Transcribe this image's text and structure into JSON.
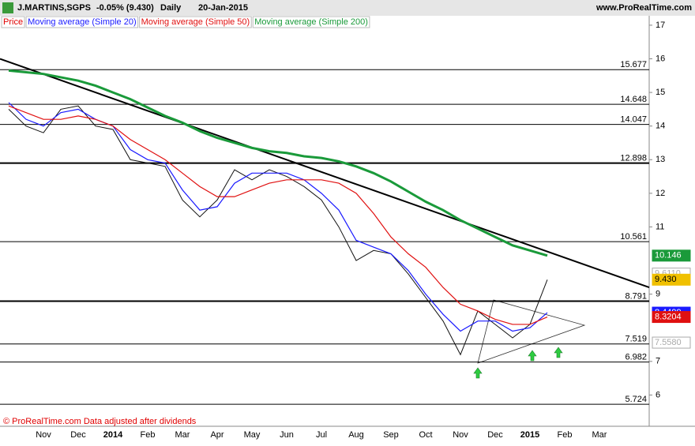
{
  "header": {
    "symbol": "J.MARTINS,SGPS",
    "change": "-0.05% (9.430)",
    "period": "Daily",
    "date": "20-Jan-2015",
    "site": "www.ProRealTime.com"
  },
  "footer": "© ProRealTime.com Data adjusted after dividends",
  "chart_data": {
    "type": "line",
    "categories": [
      null,
      null,
      "Nov",
      null,
      "Dec",
      null,
      "2014",
      null,
      "Feb",
      null,
      "Mar",
      null,
      "Apr",
      null,
      "May",
      null,
      "Jun",
      null,
      "Jul",
      null,
      "Aug",
      null,
      "Sep",
      null,
      "Oct",
      null,
      "Nov",
      null,
      "Dec",
      null,
      "2015",
      null,
      "Feb",
      null,
      "Mar"
    ],
    "series": [
      {
        "name": "Price",
        "color": "#111111",
        "legend_color": "#e00000",
        "values": [
          14.5,
          14.0,
          13.8,
          14.5,
          14.6,
          14.0,
          13.9,
          13.0,
          12.9,
          12.8,
          11.8,
          11.3,
          11.8,
          12.7,
          12.4,
          12.7,
          12.5,
          12.2,
          11.8,
          11.0,
          10.0,
          10.3,
          10.2,
          9.6,
          8.9,
          8.2,
          7.2,
          8.5,
          8.1,
          7.7,
          8.1,
          9.43,
          null,
          null,
          null
        ]
      },
      {
        "name": "Moving average (Simple 20)",
        "color": "#1a1aff",
        "values": [
          14.7,
          14.2,
          14.0,
          14.4,
          14.5,
          14.2,
          14.0,
          13.3,
          13.0,
          12.9,
          12.1,
          11.5,
          11.6,
          12.3,
          12.6,
          12.6,
          12.6,
          12.4,
          12.0,
          11.5,
          10.6,
          10.4,
          10.2,
          9.7,
          9.0,
          8.4,
          7.9,
          8.2,
          8.2,
          7.9,
          8.0,
          8.4499,
          null,
          null,
          null
        ]
      },
      {
        "name": "Moving average (Simple 50)",
        "color": "#e01010",
        "values": [
          14.6,
          14.4,
          14.2,
          14.2,
          14.3,
          14.2,
          14.0,
          13.6,
          13.3,
          13.0,
          12.6,
          12.2,
          11.9,
          11.9,
          12.1,
          12.3,
          12.4,
          12.4,
          12.4,
          12.3,
          12.0,
          11.4,
          10.7,
          10.2,
          9.8,
          9.2,
          8.7,
          8.5,
          8.25,
          8.1,
          8.1,
          8.3204,
          null,
          null,
          null
        ]
      },
      {
        "name": "Moving average (Simple 200)",
        "color": "#1a9a3a",
        "values": [
          15.65,
          15.6,
          15.55,
          15.45,
          15.35,
          15.2,
          15.0,
          14.8,
          14.55,
          14.3,
          14.1,
          13.85,
          13.65,
          13.5,
          13.35,
          13.25,
          13.2,
          13.1,
          13.05,
          12.95,
          12.8,
          12.6,
          12.35,
          12.05,
          11.75,
          11.5,
          11.2,
          10.95,
          10.7,
          10.45,
          10.3,
          10.146,
          null,
          null,
          null
        ]
      }
    ],
    "levels": [
      15.677,
      14.648,
      14.047,
      12.898,
      10.561,
      8.791,
      7.519,
      6.982,
      5.724
    ],
    "trendline": [
      16.0,
      9.2
    ],
    "price_tags": [
      {
        "value": 10.146,
        "color": "#1a9a3a"
      },
      {
        "value": {
          "value": 9.611,
          "label": "9.6110"
        },
        "color": "#aaaaaa"
      },
      {
        "value": {
          "value": 9.43,
          "label": "9.430"
        },
        "color": "#f0c000"
      },
      {
        "value": 8.4499,
        "color": "#1a1aff"
      },
      {
        "value": 8.3204,
        "color": "#e01010"
      },
      {
        "value": {
          "value": 7.558,
          "label": "7.5580"
        },
        "color": "#aaaaaa"
      }
    ],
    "ylim": [
      5.07,
      17.28
    ],
    "yticks": [
      6,
      7,
      9,
      11,
      12,
      13,
      14,
      15,
      16,
      17
    ]
  }
}
